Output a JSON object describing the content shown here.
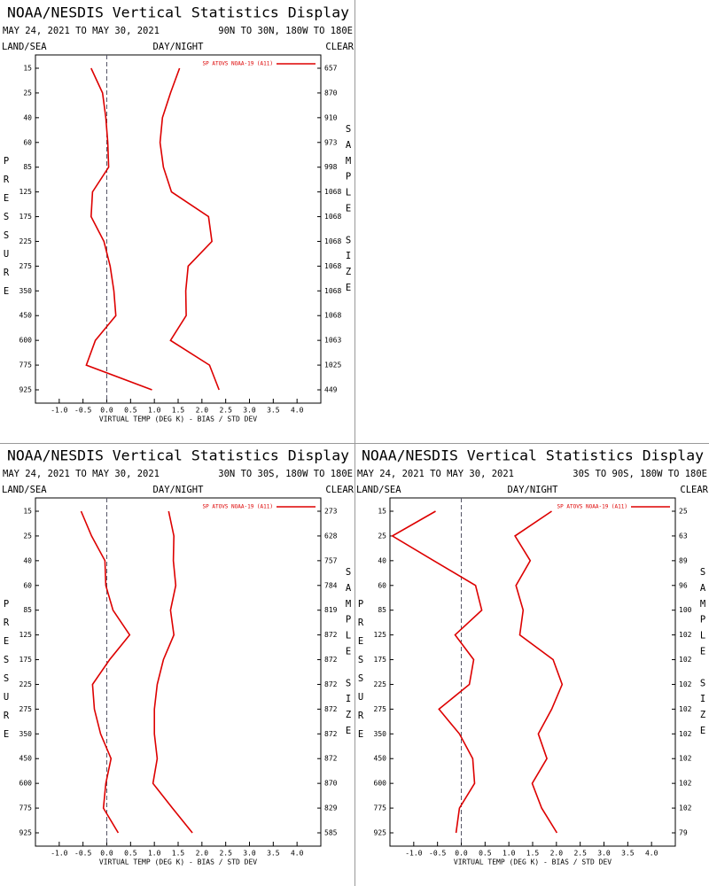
{
  "chart_data": [
    {
      "type": "line",
      "title": "NOAA/NESDIS Vertical Statistics Display",
      "period": "MAY 24, 2021 TO MAY 30, 2021",
      "region": "90N TO 30N, 180W TO 180E",
      "land_sea": "LAND/SEA",
      "day_night": "DAY/NIGHT",
      "clear": "CLEAR",
      "y_label": "PRESSURE",
      "y2_label": "SAMPLE SIZE",
      "x_label": "VIRTUAL TEMP (DEG K) - BIAS / STD DEV",
      "categories": [
        15,
        25,
        40,
        60,
        85,
        125,
        175,
        225,
        275,
        350,
        450,
        600,
        775,
        925
      ],
      "series": [
        {
          "name": "SP ATOVS NOAA-19 (A11)",
          "color": "#dd0000",
          "values": [
            -0.33,
            -0.09,
            -0.02,
            0.02,
            0.04,
            -0.3,
            -0.33,
            -0.06,
            0.07,
            0.15,
            0.19,
            -0.24,
            -0.43,
            0.95
          ]
        },
        {
          "color": "#dd0000",
          "values": [
            1.53,
            1.34,
            1.17,
            1.12,
            1.19,
            1.36,
            2.14,
            2.21,
            1.71,
            1.66,
            1.67,
            1.34,
            2.16,
            2.36
          ]
        }
      ],
      "sample_sizes": [
        657,
        870,
        910,
        973,
        998,
        1068,
        1068,
        1068,
        1068,
        1068,
        1068,
        1063,
        1025,
        449
      ],
      "xlim": [
        -1.5,
        4.5
      ],
      "xticks": [
        {
          "value": -1,
          "label": "-1.0"
        },
        -0.5,
        {
          "value": 0,
          "label": "0.0"
        },
        0.5,
        {
          "value": 1,
          "label": "1.0"
        },
        1.5,
        {
          "value": 2,
          "label": "2.0"
        },
        2.5,
        {
          "value": 3,
          "label": "3.0"
        },
        3.5,
        {
          "value": 4,
          "label": "4.0"
        }
      ]
    },
    {
      "type": "line",
      "title": "NOAA/NESDIS Vertical Statistics Display",
      "period": "MAY 24, 2021 TO MAY 30, 2021",
      "region": "30N TO 30S, 180W TO 180E",
      "land_sea": "LAND/SEA",
      "day_night": "DAY/NIGHT",
      "clear": "CLEAR",
      "y_label": "PRESSURE",
      "y2_label": "SAMPLE SIZE",
      "x_label": "VIRTUAL TEMP (DEG K) - BIAS / STD DEV",
      "categories": [
        15,
        25,
        40,
        60,
        85,
        125,
        175,
        225,
        275,
        350,
        450,
        600,
        775,
        925
      ],
      "series": [
        {
          "name": "SP ATOVS NOAA-19 (A11)",
          "color": "#dd0000",
          "values": [
            -0.54,
            -0.32,
            -0.04,
            -0.02,
            0.13,
            0.48,
            0.06,
            -0.3,
            -0.26,
            -0.13,
            0.09,
            -0.02,
            -0.07,
            0.24
          ]
        },
        {
          "color": "#dd0000",
          "values": [
            1.3,
            1.41,
            1.4,
            1.45,
            1.34,
            1.41,
            1.19,
            1.06,
            1.0,
            1.0,
            1.06,
            0.97,
            1.38,
            1.8
          ]
        }
      ],
      "sample_sizes": [
        273,
        628,
        757,
        784,
        819,
        872,
        872,
        872,
        872,
        872,
        872,
        870,
        829,
        585
      ],
      "xlim": [
        -1.5,
        4.5
      ],
      "xticks": [
        {
          "value": -1,
          "label": "-1.0"
        },
        -0.5,
        {
          "value": 0,
          "label": "0.0"
        },
        0.5,
        {
          "value": 1,
          "label": "1.0"
        },
        1.5,
        {
          "value": 2,
          "label": "2.0"
        },
        2.5,
        {
          "value": 3,
          "label": "3.0"
        },
        3.5,
        {
          "value": 4,
          "label": "4.0"
        }
      ]
    },
    {
      "type": "line",
      "title": "NOAA/NESDIS Vertical Statistics Display",
      "period": "MAY 24, 2021 TO MAY 30, 2021",
      "region": "30S TO 90S, 180W TO 180E",
      "land_sea": "LAND/SEA",
      "day_night": "DAY/NIGHT",
      "clear": "CLEAR",
      "y_label": "PRESSURE",
      "y2_label": "SAMPLE SIZE",
      "x_label": "VIRTUAL TEMP (DEG K) - BIAS / STD DEV",
      "categories": [
        15,
        25,
        40,
        60,
        85,
        125,
        175,
        225,
        275,
        350,
        450,
        600,
        775,
        925
      ],
      "series": [
        {
          "name": "SP ATOVS NOAA-19 (A11)",
          "color": "#dd0000",
          "values": [
            -0.54,
            -1.45,
            -0.58,
            0.3,
            0.43,
            -0.13,
            0.26,
            0.17,
            -0.47,
            -0.04,
            0.24,
            0.28,
            -0.04,
            -0.11
          ]
        },
        {
          "color": "#dd0000",
          "values": [
            1.9,
            1.13,
            1.45,
            1.15,
            1.3,
            1.23,
            1.93,
            2.12,
            1.9,
            1.62,
            1.8,
            1.49,
            1.69,
            2.01
          ]
        }
      ],
      "sample_sizes": [
        25,
        63,
        89,
        96,
        100,
        102,
        102,
        102,
        102,
        102,
        102,
        102,
        102,
        79
      ],
      "xlim": [
        -1.5,
        4.5
      ],
      "xticks": [
        {
          "value": -1,
          "label": "-1.0"
        },
        -0.5,
        {
          "value": 0,
          "label": "0.0"
        },
        0.5,
        {
          "value": 1,
          "label": "1.0"
        },
        1.5,
        {
          "value": 2,
          "label": "2.0"
        },
        2.5,
        {
          "value": 3,
          "label": "3.0"
        },
        3.5,
        {
          "value": 4,
          "label": "4.0"
        }
      ]
    }
  ]
}
